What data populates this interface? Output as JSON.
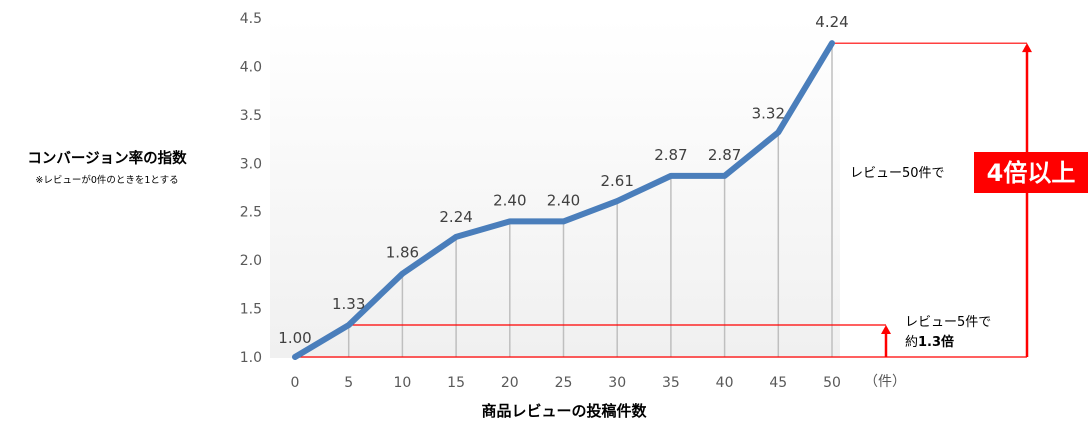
{
  "chart_data": {
    "type": "line",
    "x": [
      0,
      5,
      10,
      15,
      20,
      25,
      30,
      35,
      40,
      45,
      50
    ],
    "values": [
      1.0,
      1.33,
      1.86,
      2.24,
      2.4,
      2.4,
      2.61,
      2.87,
      2.87,
      3.32,
      4.24
    ],
    "data_labels": [
      "1.00",
      "1.33",
      "1.86",
      "2.24",
      "2.40",
      "2.40",
      "2.61",
      "2.87",
      "2.87",
      "3.32",
      "4.24"
    ],
    "x_tick_labels": [
      "0",
      "5",
      "10",
      "15",
      "20",
      "25",
      "30",
      "35",
      "40",
      "45",
      "50"
    ],
    "y_tick_labels": [
      "1.0",
      "1.5",
      "2.0",
      "2.5",
      "3.0",
      "3.5",
      "4.0",
      "4.5"
    ],
    "ylim": [
      1.0,
      4.5
    ],
    "xlabel": "商品レビューの投稿件数",
    "x_unit": "（件）",
    "ylabel": "コンバージョン率の指数",
    "ylabel_note": "※レビューが0件のときを1とする",
    "grid": false,
    "drop_lines": true,
    "series_color": "#4A7EBB",
    "annotation_color": "#FF0000",
    "annotations": {
      "five": {
        "line1": "レビュー5件で",
        "line2_prefix": "約",
        "line2_value": "1.3倍"
      },
      "fifty": {
        "text": "レビュー50件で",
        "badge_num": "4",
        "badge_rest": "倍以上"
      }
    }
  }
}
